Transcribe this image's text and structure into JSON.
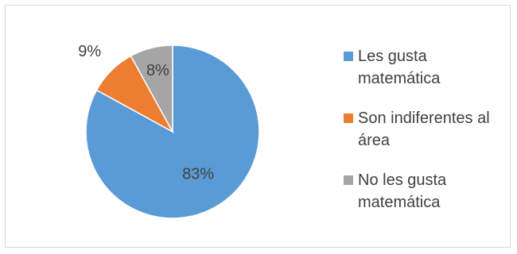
{
  "chart_data": {
    "type": "pie",
    "title": "",
    "slices": [
      {
        "label": "Les gusta matemática",
        "value": 83,
        "data_label": "83%",
        "color": "#5b9bd5"
      },
      {
        "label": "Son indiferentes al área",
        "value": 9,
        "data_label": "9%",
        "color": "#ed7d31"
      },
      {
        "label": "No les gusta matemática",
        "value": 8,
        "data_label": "8%",
        "color": "#a5a5a5"
      }
    ],
    "legend_position": "right"
  }
}
